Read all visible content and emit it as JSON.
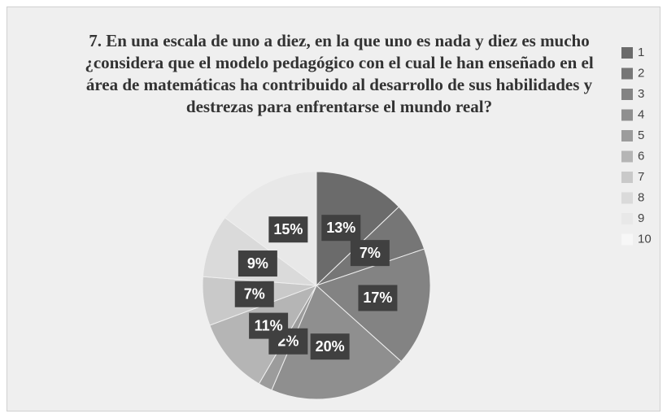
{
  "chart_data": {
    "type": "pie",
    "title": "7. En una escala de uno a diez, en la que uno es nada y diez es mucho ¿considera que el modelo pedagógico con el cual le han enseñado en el área de matemáticas ha contribuido al desarrollo de sus habilidades y destrezas para enfrentarse el mundo real?",
    "categories": [
      "1",
      "2",
      "3",
      "4",
      "5",
      "6",
      "7",
      "8",
      "9",
      "10"
    ],
    "values": [
      13,
      7,
      17,
      20,
      2,
      11,
      7,
      9,
      15,
      0
    ],
    "value_labels": [
      "13%",
      "7%",
      "17%",
      "20%",
      "2%",
      "11%",
      "7%",
      "9%",
      "15%",
      null
    ],
    "colors": [
      "#6b6b6b",
      "#767676",
      "#838383",
      "#8f8f8f",
      "#9c9c9c",
      "#b5b5b5",
      "#c9c9c9",
      "#dadada",
      "#e8e8e8",
      "#f7f7f7"
    ],
    "legend": "right"
  }
}
